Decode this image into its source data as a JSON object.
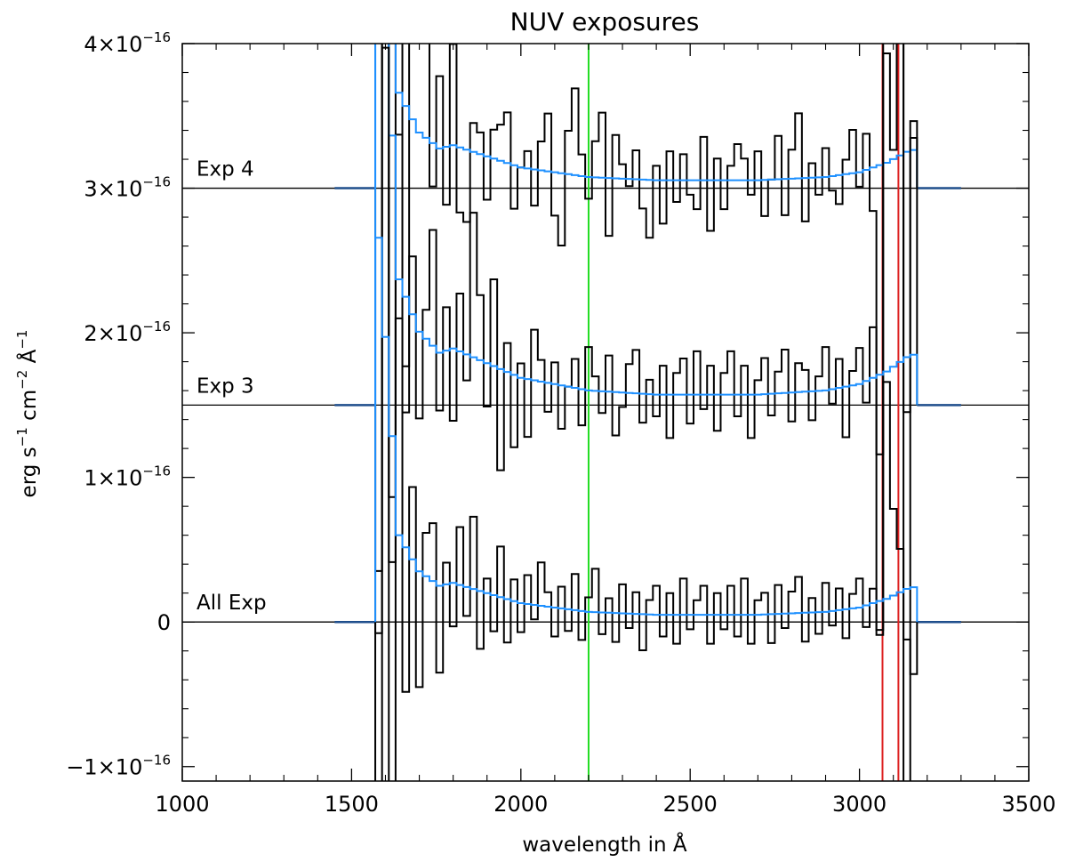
{
  "chart_data": {
    "type": "line",
    "title": "NUV exposures",
    "xlabel": "wavelength in Å",
    "ylabel": {
      "parts": [
        "erg s",
        "−1",
        " cm",
        "−2",
        " Å",
        "−1"
      ]
    },
    "xlim": [
      1000,
      3500
    ],
    "ylim": [
      -1.1e-16,
      4e-16
    ],
    "x_ticks": [
      1000,
      1500,
      2000,
      2500,
      3000,
      3500
    ],
    "x_tick_labels": [
      "1000",
      "1500",
      "2000",
      "2500",
      "3000",
      "3500"
    ],
    "y_ticks": [
      {
        "value": 4e-16,
        "mantissa": "4×10",
        "exponent": "−16"
      },
      {
        "value": 3e-16,
        "mantissa": "3×10",
        "exponent": "−16"
      },
      {
        "value": 2e-16,
        "mantissa": "2×10",
        "exponent": "−16"
      },
      {
        "value": 1e-16,
        "mantissa": "1×10",
        "exponent": "−16"
      },
      {
        "value": 0,
        "mantissa": "0",
        "exponent": ""
      },
      {
        "value": -1e-16,
        "mantissa": "−1×10",
        "exponent": "−16"
      }
    ],
    "y_minor_step": 2e-17,
    "x_minor_step": 100,
    "vertical_markers": [
      {
        "x": 2200,
        "color": "#22dd22"
      },
      {
        "x": 3068,
        "color": "#dd2222"
      },
      {
        "x": 3115,
        "color": "#dd2222"
      }
    ],
    "offsets": [
      {
        "label": "Exp 4",
        "baseline": 3e-16
      },
      {
        "label": "Exp 3",
        "baseline": 1.5e-16
      },
      {
        "label": "All Exp",
        "baseline": 0
      }
    ],
    "series_info": {
      "observed": {
        "color": "#000000",
        "style": "histogram"
      },
      "model": {
        "color": "#1e90ff",
        "style": "histogram"
      },
      "padding_color": "#1f4e8c"
    },
    "bin_width": 20,
    "x_start": 1570,
    "x_end": 3170,
    "model_profile": {
      "x": [
        1570,
        1640,
        1700,
        1760,
        1800,
        1900,
        2000,
        2100,
        2200,
        2400,
        2700,
        2900,
        3000,
        3080,
        3150,
        3170
      ],
      "y": [
        3e-16,
        6e-17,
        3.5e-17,
        2.5e-17,
        2.7e-17,
        2e-17,
        1.3e-17,
        1e-17,
        7e-18,
        5e-18,
        5e-18,
        7e-18,
        1e-17,
        1.6e-17,
        2.4e-17,
        2.4e-17
      ]
    },
    "model_amplitude": {
      "Exp 4": 1.1,
      "Exp 3": 1.45,
      "All Exp": 1.0
    },
    "observed_residuals": {
      "Exp 4": [
        -6e-16,
        2.5e-16,
        -4e-16,
        3e-16,
        -1.8e-16,
        1.5e-16,
        7e-17,
        9e-17,
        -3e-17,
        5e-17,
        -4e-17,
        7e-17,
        -4.5e-17,
        -5e-17,
        2e-17,
        1.5e-17,
        -3e-17,
        2e-17,
        2.5e-17,
        3.5e-17,
        -3e-17,
        0,
        1.2e-17,
        -2.5e-17,
        2e-17,
        4e-17,
        -3e-17,
        -5e-17,
        3e-17,
        6e-17,
        1.5e-17,
        -1.5e-17,
        2.5e-17,
        4.5e-17,
        -4e-17,
        3e-17,
        1e-17,
        -5e-18,
        2e-17,
        -2e-17,
        -4e-17,
        1e-17,
        -3e-17,
        2e-17,
        -1.5e-17,
        1.8e-17,
        -1e-17,
        -2e-17,
        3e-17,
        -3.5e-17,
        1.5e-17,
        -2e-17,
        1e-17,
        2.5e-17,
        1.5e-17,
        -1e-17,
        2e-17,
        -2.5e-17,
        0,
        3e-17,
        -2.5e-17,
        2e-17,
        4.5e-17,
        -3e-17,
        1e-17,
        -1.2e-17,
        2e-17,
        -1e-17,
        -2e-17,
        1e-17,
        3e-17,
        -1e-17,
        2.5e-17,
        -3e-17,
        1.5e-17,
        3.5e-17,
        -1e-17,
        -1.5e-17,
        4e-17,
        2e-17,
        -1e-17
      ],
      "Exp 3": [
        -5e-16,
        3.5e-16,
        -2.5e-16,
        1e-16,
        -8e-17,
        4e-17,
        -6e-17,
        2e-17,
        8e-17,
        -4e-17,
        3e-17,
        -5e-17,
        4e-17,
        -1.8e-17,
        1e-16,
        4.5e-17,
        -3e-17,
        6e-17,
        -7e-17,
        2e-17,
        -5e-17,
        1e-17,
        -4e-17,
        3.5e-17,
        1.5e-17,
        -2e-17,
        1.5e-17,
        -3e-17,
        0,
        2e-17,
        -2.5e-17,
        3e-17,
        1e-17,
        -1.5e-17,
        2.5e-17,
        -3e-17,
        -1e-17,
        2e-17,
        3e-17,
        -2e-17,
        1e-17,
        -1.5e-17,
        2e-17,
        -3e-17,
        1.5e-17,
        2.5e-17,
        -2e-17,
        3e-17,
        -1e-17,
        2e-17,
        -2.5e-17,
        1.5e-17,
        3e-17,
        -1.5e-17,
        2e-17,
        -3e-17,
        1e-17,
        2.5e-17,
        -1.5e-17,
        1.5e-17,
        3e-17,
        -2e-17,
        2e-17,
        1.5e-17,
        -2e-17,
        1e-17,
        3e-17,
        -1e-17,
        2e-17,
        -3.5e-17,
        1e-17,
        2.5e-17,
        -1.5e-17,
        3.5e-17,
        -3e-17,
        -5e-17,
        2e-17,
        4e-17,
        1.5e-17,
        1e-17,
        -1e-17
      ],
      "All Exp": [
        -4e-16,
        2e-16,
        -3e-16,
        1.5e-16,
        -1e-16,
        5e-17,
        -8e-17,
        3e-17,
        4e-17,
        -6e-17,
        1.5e-17,
        -3e-17,
        4e-17,
        -2e-17,
        5e-17,
        -4e-17,
        1e-17,
        -2.5e-17,
        3.5e-17,
        -3e-17,
        1.5e-17,
        -2e-17,
        2e-17,
        -1e-17,
        3e-17,
        1e-17,
        -2e-17,
        1.5e-17,
        -1.5e-17,
        2.5e-17,
        -2e-17,
        1e-17,
        3e-17,
        -1.5e-17,
        1e-17,
        -2e-17,
        2e-17,
        -1e-17,
        1.5e-17,
        -2.5e-17,
        1e-17,
        2e-17,
        -1.5e-17,
        1.5e-17,
        -2e-17,
        2.5e-17,
        -1e-17,
        1e-17,
        2e-17,
        -2e-17,
        1.5e-17,
        -1e-17,
        2e-17,
        -1.5e-17,
        2.5e-17,
        -2e-17,
        1e-17,
        1.5e-17,
        -2e-17,
        2e-17,
        -1e-17,
        1.5e-17,
        2.5e-17,
        -2e-17,
        1e-17,
        -1.5e-17,
        2e-17,
        -1e-17,
        1.5e-17,
        -2e-17,
        1e-17,
        2e-17,
        -1.5e-17,
        1e-17,
        -2e-17,
        -3e-17,
        1.5e-17,
        3.5e-17,
        -2.5e-17,
        2e-17,
        -1e-17
      ]
    },
    "residual_overrides": {
      "Exp 4": {
        "3050": -2e-16,
        "3070": 3.8e-16,
        "3090": 1e-16,
        "3110": 3.5e-16,
        "3130": -1.8e-16,
        "3150": 2e-17
      },
      "Exp 3": {
        "3050": -1.8e-16,
        "3070": 2.2e-16,
        "3090": 1.5e-16,
        "3110": 2.5e-16,
        "3130": -3e-16,
        "3150": 1.5e-16
      },
      "All Exp": {
        "3050": -2e-17,
        "3070": 1.5e-16,
        "3090": 6e-17,
        "3110": 3e-17,
        "3130": -3.5e-17,
        "3150": -6e-17
      }
    }
  }
}
